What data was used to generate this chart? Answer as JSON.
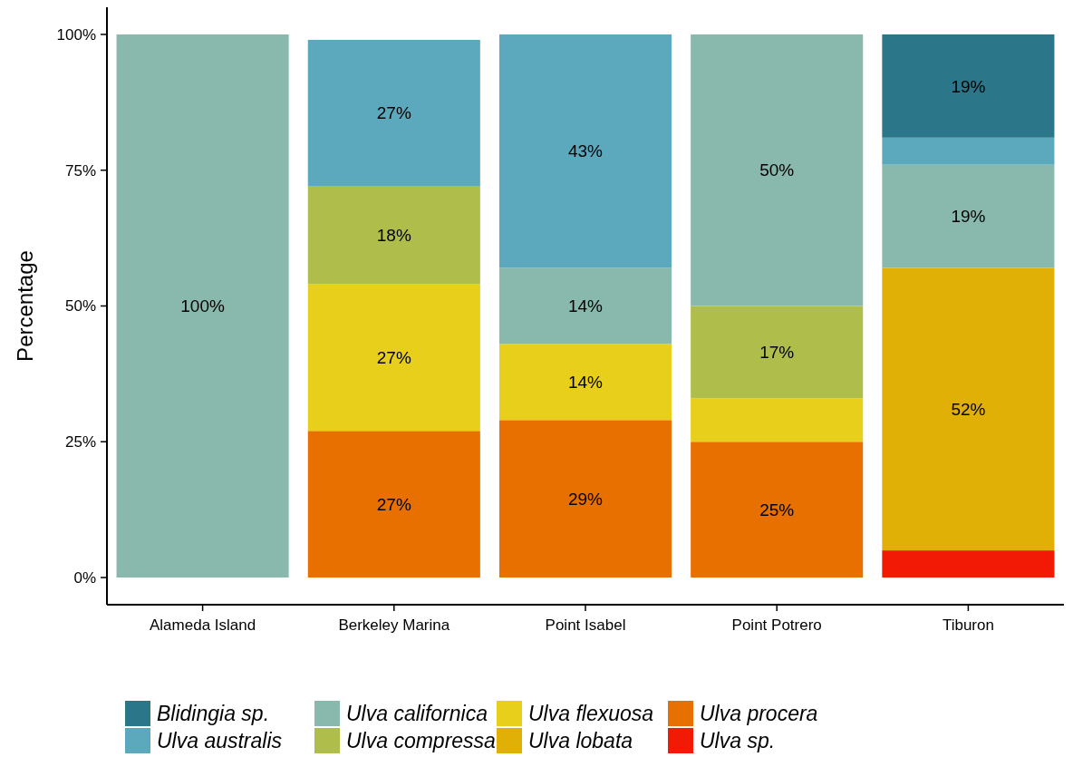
{
  "chart_data": {
    "type": "bar",
    "stacked": true,
    "ylabel": "Percentage",
    "categories": [
      "Alameda Island",
      "Berkeley Marina",
      "Point Isabel",
      "Point Potrero",
      "Tiburon"
    ],
    "ylim": [
      -5,
      105
    ],
    "yticks": [
      {
        "value": 0,
        "label": "0%"
      },
      {
        "value": 25,
        "label": "25%"
      },
      {
        "value": 50,
        "label": "50%"
      },
      {
        "value": 75,
        "label": "75%"
      },
      {
        "value": 100,
        "label": "100%"
      }
    ],
    "grid": false,
    "legend": "bottom",
    "series": [
      {
        "name": "Ulva sp.",
        "color": "#f21a05",
        "values": [
          null,
          null,
          null,
          null,
          5
        ],
        "value_labels": [
          null,
          null,
          null,
          null,
          null
        ]
      },
      {
        "name": "Ulva procera",
        "color": "#e87000",
        "values": [
          null,
          27,
          29,
          25,
          null
        ],
        "value_labels": [
          null,
          "27%",
          "29%",
          "25%",
          null
        ]
      },
      {
        "name": "Ulva lobata",
        "color": "#e0b006",
        "values": [
          null,
          null,
          null,
          null,
          52
        ],
        "value_labels": [
          null,
          null,
          null,
          null,
          "52%"
        ]
      },
      {
        "name": "Ulva flexuosa",
        "color": "#e8cf1b",
        "values": [
          null,
          27,
          14,
          8,
          null
        ],
        "value_labels": [
          null,
          "27%",
          "14%",
          null,
          null
        ]
      },
      {
        "name": "Ulva compressa",
        "color": "#afbd4b",
        "values": [
          null,
          18,
          null,
          17,
          null
        ],
        "value_labels": [
          null,
          "18%",
          null,
          "17%",
          null
        ]
      },
      {
        "name": "Ulva californica",
        "color": "#89b9ac",
        "values": [
          100,
          null,
          14,
          50,
          19
        ],
        "value_labels": [
          "100%",
          null,
          "14%",
          "50%",
          "19%"
        ]
      },
      {
        "name": "Ulva australis",
        "color": "#5ca9bd",
        "values": [
          null,
          27,
          43,
          null,
          5
        ],
        "value_labels": [
          null,
          "27%",
          "43%",
          null,
          null
        ]
      },
      {
        "name": "Blidingia sp.",
        "color": "#2c7689",
        "values": [
          null,
          null,
          null,
          null,
          19
        ],
        "value_labels": [
          null,
          null,
          null,
          null,
          "19%"
        ]
      }
    ]
  }
}
